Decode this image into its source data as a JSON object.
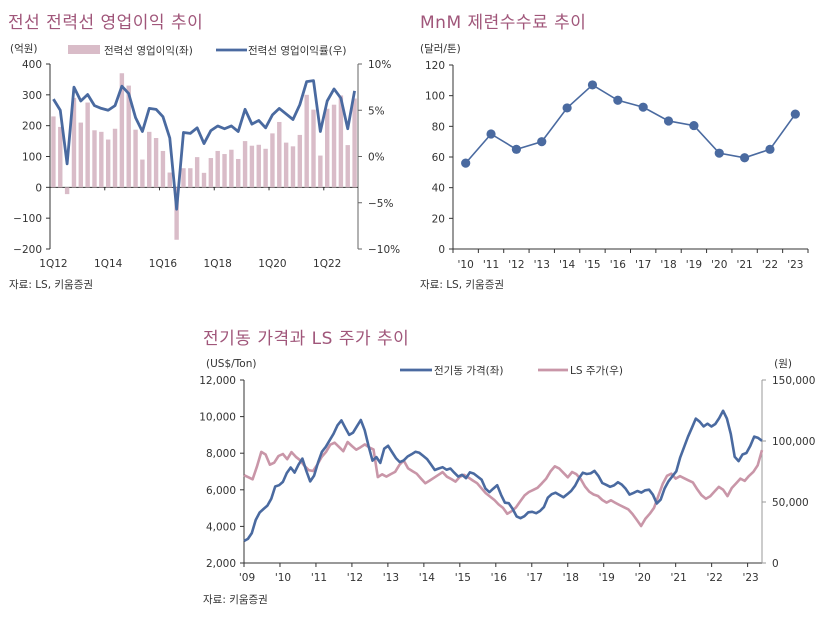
{
  "colors": {
    "title": "#a0567a",
    "blue": "#4a6aa0",
    "pink": "#d9bcc8",
    "pink_line": "#c996a8",
    "axis": "#333333"
  },
  "chart_data": [
    {
      "type": "bar+line",
      "title": "전선 전력선 영업이익 추이",
      "source": "자료: LS, 키움증권",
      "ylabel": "(억원)",
      "ylim": [
        -200,
        400
      ],
      "y2lim": [
        -10,
        10
      ],
      "yticks": [
        "400",
        "300",
        "200",
        "100",
        "0",
        "−100",
        "−200"
      ],
      "y2ticks": [
        "10%",
        "5%",
        "0%",
        "−5%",
        "−10%"
      ],
      "xticks": [
        "1Q12",
        "1Q14",
        "1Q16",
        "1Q18",
        "1Q20",
        "1Q22"
      ],
      "legend": [
        "전력선 영업이익(좌)",
        "전력선 영업이익률(우)"
      ],
      "series": [
        {
          "name": "전력선 영업이익(좌)",
          "kind": "bar",
          "values": [
            230,
            196,
            -22,
            290,
            210,
            275,
            185,
            180,
            155,
            190,
            370,
            330,
            187,
            90,
            180,
            160,
            118,
            48,
            -170,
            62,
            62,
            98,
            47,
            95,
            118,
            108,
            122,
            92,
            150,
            135,
            138,
            125,
            175,
            212,
            145,
            133,
            170,
            300,
            252,
            103,
            255,
            268,
            298,
            137,
            288
          ]
        },
        {
          "name": "전력선 영업이익률(우)",
          "kind": "line",
          "values": [
            6.2,
            5.0,
            -0.8,
            7.5,
            6.0,
            6.7,
            5.5,
            5.2,
            5.0,
            5.5,
            7.6,
            6.8,
            4.2,
            2.7,
            5.2,
            5.1,
            4.3,
            2.0,
            -5.7,
            2.6,
            2.5,
            3.1,
            1.4,
            2.8,
            3.3,
            3.0,
            3.3,
            2.7,
            5.1,
            3.5,
            3.9,
            3.1,
            4.5,
            5.2,
            4.6,
            4.0,
            5.6,
            8.1,
            8.2,
            2.7,
            6.0,
            7.3,
            6.3,
            3.0,
            7.1
          ]
        }
      ]
    },
    {
      "type": "line",
      "title": "MnM 제련수수료 추이",
      "source": "자료: LS, 키움증권",
      "ylabel": "(달러/톤)",
      "ylim": [
        0,
        120
      ],
      "yticks": [
        "0",
        "20",
        "40",
        "60",
        "80",
        "100",
        "120"
      ],
      "categories": [
        "'10",
        "'11",
        "'12",
        "'13",
        "'14",
        "'15",
        "'16",
        "'17",
        "'18",
        "'19",
        "'20",
        "'21",
        "'22",
        "'23"
      ],
      "values": [
        56,
        75,
        65,
        70,
        92,
        107,
        97,
        92.5,
        83.5,
        80.5,
        62.5,
        59.5,
        65,
        88
      ]
    },
    {
      "type": "line",
      "title": "전기동 가격과 LS 주가 추이",
      "source": "자료: 키움증권",
      "ylabel": "(US$/Ton)",
      "y2label": "(원)",
      "ylim": [
        2000,
        12000
      ],
      "y2lim": [
        0,
        150000
      ],
      "yticks": [
        "12,000",
        "10,000",
        "8,000",
        "6,000",
        "4,000",
        "2,000"
      ],
      "y2ticks": [
        "150,000",
        "100,000",
        "50,000",
        "0"
      ],
      "xticks": [
        "'09",
        "'10",
        "'11",
        "'12",
        "'13",
        "'14",
        "'15",
        "'16",
        "'17",
        "'18",
        "'19",
        "'20",
        "'21",
        "'22",
        "'23"
      ],
      "x_start": 2009,
      "x_end": 2023.4,
      "legend": [
        "전기동 가격(좌)",
        "LS 주가(우)"
      ],
      "series": [
        {
          "name": "전기동 가격(좌)",
          "axis": "left",
          "values": [
            3200,
            3300,
            3600,
            4300,
            4700,
            4900,
            5100,
            5500,
            6200,
            6300,
            6500,
            7000,
            7300,
            7000,
            7400,
            7700,
            7000,
            6400,
            6700,
            7400,
            8000,
            8300,
            8700,
            9100,
            9600,
            9900,
            9500,
            9100,
            9200,
            9500,
            9800,
            9200,
            8300,
            7500,
            7700,
            7400,
            8200,
            8400,
            8100,
            7800,
            7600,
            7700,
            7900,
            8000,
            8100,
            8000,
            7800,
            7600,
            7300,
            7000,
            7100,
            7200,
            7100,
            7200,
            7000,
            6800,
            6900,
            6700,
            7000,
            6900,
            6700,
            6500,
            6000,
            5800,
            6000,
            6200,
            5700,
            5300,
            5300,
            5000,
            4600,
            4500,
            4600,
            4800,
            4800,
            4700,
            4800,
            5000,
            5500,
            5700,
            5800,
            5700,
            5600,
            5800,
            6000,
            6300,
            6700,
            7000,
            6900,
            6900,
            7000,
            6700,
            6300,
            6200,
            6100,
            6200,
            6400,
            6300,
            6100,
            5800,
            5900,
            6000,
            5900,
            6000,
            6000,
            5700,
            5200,
            5400,
            6000,
            6400,
            6700,
            7000,
            7800,
            8400,
            9000,
            9500,
            10000,
            9800,
            9500,
            9600,
            9400,
            9500,
            9800,
            10200,
            9800,
            9000,
            7800,
            7600,
            8000,
            8100,
            8500,
            9000,
            8900,
            8700
          ]
        },
        {
          "name": "LS 주가(우)",
          "axis": "right",
          "values": [
            72000,
            70000,
            68000,
            78000,
            90000,
            88000,
            80000,
            82000,
            88000,
            90000,
            86000,
            92000,
            88000,
            85000,
            80000,
            76000,
            75000,
            80000,
            86000,
            90000,
            96000,
            98000,
            95000,
            92000,
            100000,
            97000,
            94000,
            96000,
            98000,
            95000,
            93000,
            70000,
            72000,
            70000,
            72000,
            74000,
            80000,
            84000,
            78000,
            76000,
            74000,
            70000,
            66000,
            68000,
            70000,
            72000,
            74000,
            70000,
            68000,
            66000,
            70000,
            72000,
            70000,
            68000,
            66000,
            62000,
            58000,
            55000,
            52000,
            48000,
            45000,
            40000,
            42000,
            45000,
            50000,
            55000,
            58000,
            60000,
            62000,
            66000,
            70000,
            76000,
            80000,
            78000,
            74000,
            70000,
            74000,
            72000,
            68000,
            62000,
            58000,
            56000,
            55000,
            52000,
            50000,
            52000,
            50000,
            48000,
            46000,
            44000,
            40000,
            35000,
            30000,
            36000,
            40000,
            45000,
            55000,
            65000,
            72000,
            74000,
            70000,
            72000,
            70000,
            68000,
            66000,
            60000,
            55000,
            52000,
            54000,
            58000,
            62000,
            60000,
            55000,
            62000,
            66000,
            70000,
            68000,
            72000,
            75000,
            80000,
            92000
          ]
        }
      ]
    }
  ]
}
